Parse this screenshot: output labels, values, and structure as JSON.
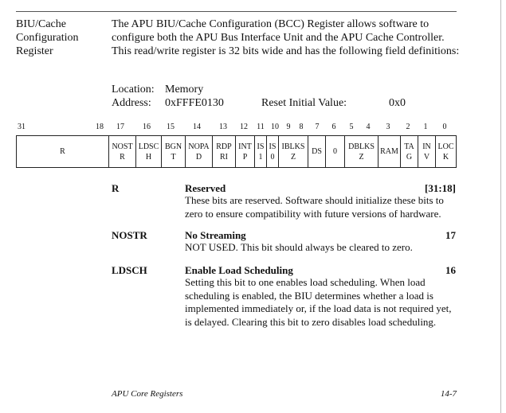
{
  "side_heading": [
    "BIU/Cache",
    "Configuration",
    "Register"
  ],
  "intro": "The APU BIU/Cache Configuration (BCC) Register allows software to configure both the APU Bus Interface Unit and the APU Cache Controller. This read/write register is 32 bits wide and has the following field definitions:",
  "location": {
    "label": "Location:",
    "value": "Memory"
  },
  "address": {
    "label": "Address:",
    "value": "0xFFFE0130"
  },
  "reset": {
    "label": "Reset Initial Value:",
    "value": "0x0"
  },
  "bit_numbers": [
    "31",
    "18",
    "17",
    "16",
    "15",
    "14",
    "13",
    "12",
    "11",
    "10",
    "9",
    "8",
    "7",
    "6",
    "5",
    "4",
    "3",
    "2",
    "1",
    "0"
  ],
  "fields": [
    {
      "lines": [
        "R"
      ]
    },
    {
      "lines": [
        "NOST",
        "R"
      ]
    },
    {
      "lines": [
        "LDSC",
        "H"
      ]
    },
    {
      "lines": [
        "BGN",
        "T"
      ]
    },
    {
      "lines": [
        "NOPA",
        "D"
      ]
    },
    {
      "lines": [
        "RDP",
        "RI"
      ]
    },
    {
      "lines": [
        "INT",
        "P"
      ]
    },
    {
      "lines": [
        "IS",
        "1"
      ]
    },
    {
      "lines": [
        "IS",
        "0"
      ]
    },
    {
      "lines": [
        "IBLKS",
        "Z"
      ]
    },
    {
      "lines": [
        "DS"
      ]
    },
    {
      "lines": [
        "0"
      ]
    },
    {
      "lines": [
        "DBLKS",
        "Z"
      ]
    },
    {
      "lines": [
        "RAM"
      ]
    },
    {
      "lines": [
        "TA",
        "G"
      ]
    },
    {
      "lines": [
        "IN",
        "V"
      ]
    },
    {
      "lines": [
        "LOC",
        "K"
      ]
    }
  ],
  "definitions": [
    {
      "code": "R",
      "title": "Reserved",
      "bits": "[31:18]",
      "description": "These bits are reserved. Software should initialize these bits to zero to ensure compatibility with future versions of hardware."
    },
    {
      "code": "NOSTR",
      "title": "No Streaming",
      "bits": "17",
      "description": "NOT USED. This bit should always be cleared to zero."
    },
    {
      "code": "LDSCH",
      "title": "Enable Load Scheduling",
      "bits": "16",
      "description": "Setting this bit to one enables load scheduling. When load scheduling is enabled, the BIU determines whether a load is implemented immediately or, if the load data is not required yet, is delayed. Clearing this bit to zero disables load scheduling."
    }
  ],
  "footer": {
    "left": "APU Core Registers",
    "right": "14-7"
  }
}
